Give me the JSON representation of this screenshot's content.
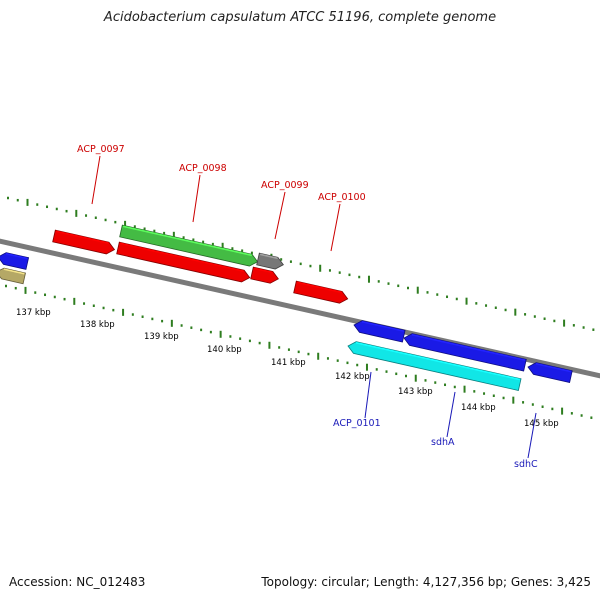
{
  "title": "Acidobacterium capsulatum ATCC 51196, complete genome",
  "footer": {
    "accession": "Accession: NC_012483",
    "summary": "Topology: circular; Length: 4,127,356 bp; Genes: 3,425"
  },
  "colors": {
    "backbone": "#7a7a7a",
    "tick": "#2e7d1f",
    "kbp_label": "#000000",
    "label_plus": "#cc0000",
    "label_minus": "#1a1ab8",
    "red": "#ee0000",
    "green": "#44bb44",
    "gray": "#777777",
    "blue": "#1a1ae6",
    "cyan": "#11e6e6",
    "khaki": "#b5a866"
  },
  "axis": {
    "kbp_labels": [
      "137 kbp",
      "138 kbp",
      "139 kbp",
      "140 kbp",
      "141 kbp",
      "142 kbp",
      "143 kbp",
      "144 kbp",
      "145 kbp"
    ]
  },
  "gene_labels": [
    {
      "text": "ACP_0097",
      "strand": "plus"
    },
    {
      "text": "ACP_0098",
      "strand": "plus"
    },
    {
      "text": "ACP_0099",
      "strand": "plus"
    },
    {
      "text": "ACP_0100",
      "strand": "plus"
    },
    {
      "text": "ACP_0101",
      "strand": "minus"
    },
    {
      "text": "sdhA",
      "strand": "minus"
    },
    {
      "text": "sdhC",
      "strand": "minus"
    }
  ],
  "features": [
    {
      "id": "ACP_0096",
      "track": "inner",
      "color": "blue",
      "dir": "rev"
    },
    {
      "id": "khaki-feature",
      "track": "inner2",
      "color": "khaki",
      "dir": "rev"
    },
    {
      "id": "ACP_0097",
      "track": "outer",
      "color": "red",
      "dir": "fwd"
    },
    {
      "id": "ACP_0098-green",
      "track": "outer-top",
      "color": "green",
      "dir": "fwd"
    },
    {
      "id": "ACP_0098-gray",
      "track": "outer-top",
      "color": "gray",
      "dir": "fwd"
    },
    {
      "id": "ACP_0098",
      "track": "outer",
      "color": "red",
      "dir": "fwd"
    },
    {
      "id": "ACP_0099",
      "track": "outer",
      "color": "red",
      "dir": "fwd"
    },
    {
      "id": "ACP_0100",
      "track": "outer",
      "color": "red",
      "dir": "fwd"
    },
    {
      "id": "ACP_0101",
      "track": "inner",
      "color": "blue",
      "dir": "rev"
    },
    {
      "id": "sdhA",
      "track": "inner",
      "color": "blue",
      "dir": "rev"
    },
    {
      "id": "sdhC",
      "track": "inner",
      "color": "blue",
      "dir": "rev"
    },
    {
      "id": "ACP_0101-cyan",
      "track": "inner2",
      "color": "cyan",
      "dir": "rev"
    }
  ]
}
